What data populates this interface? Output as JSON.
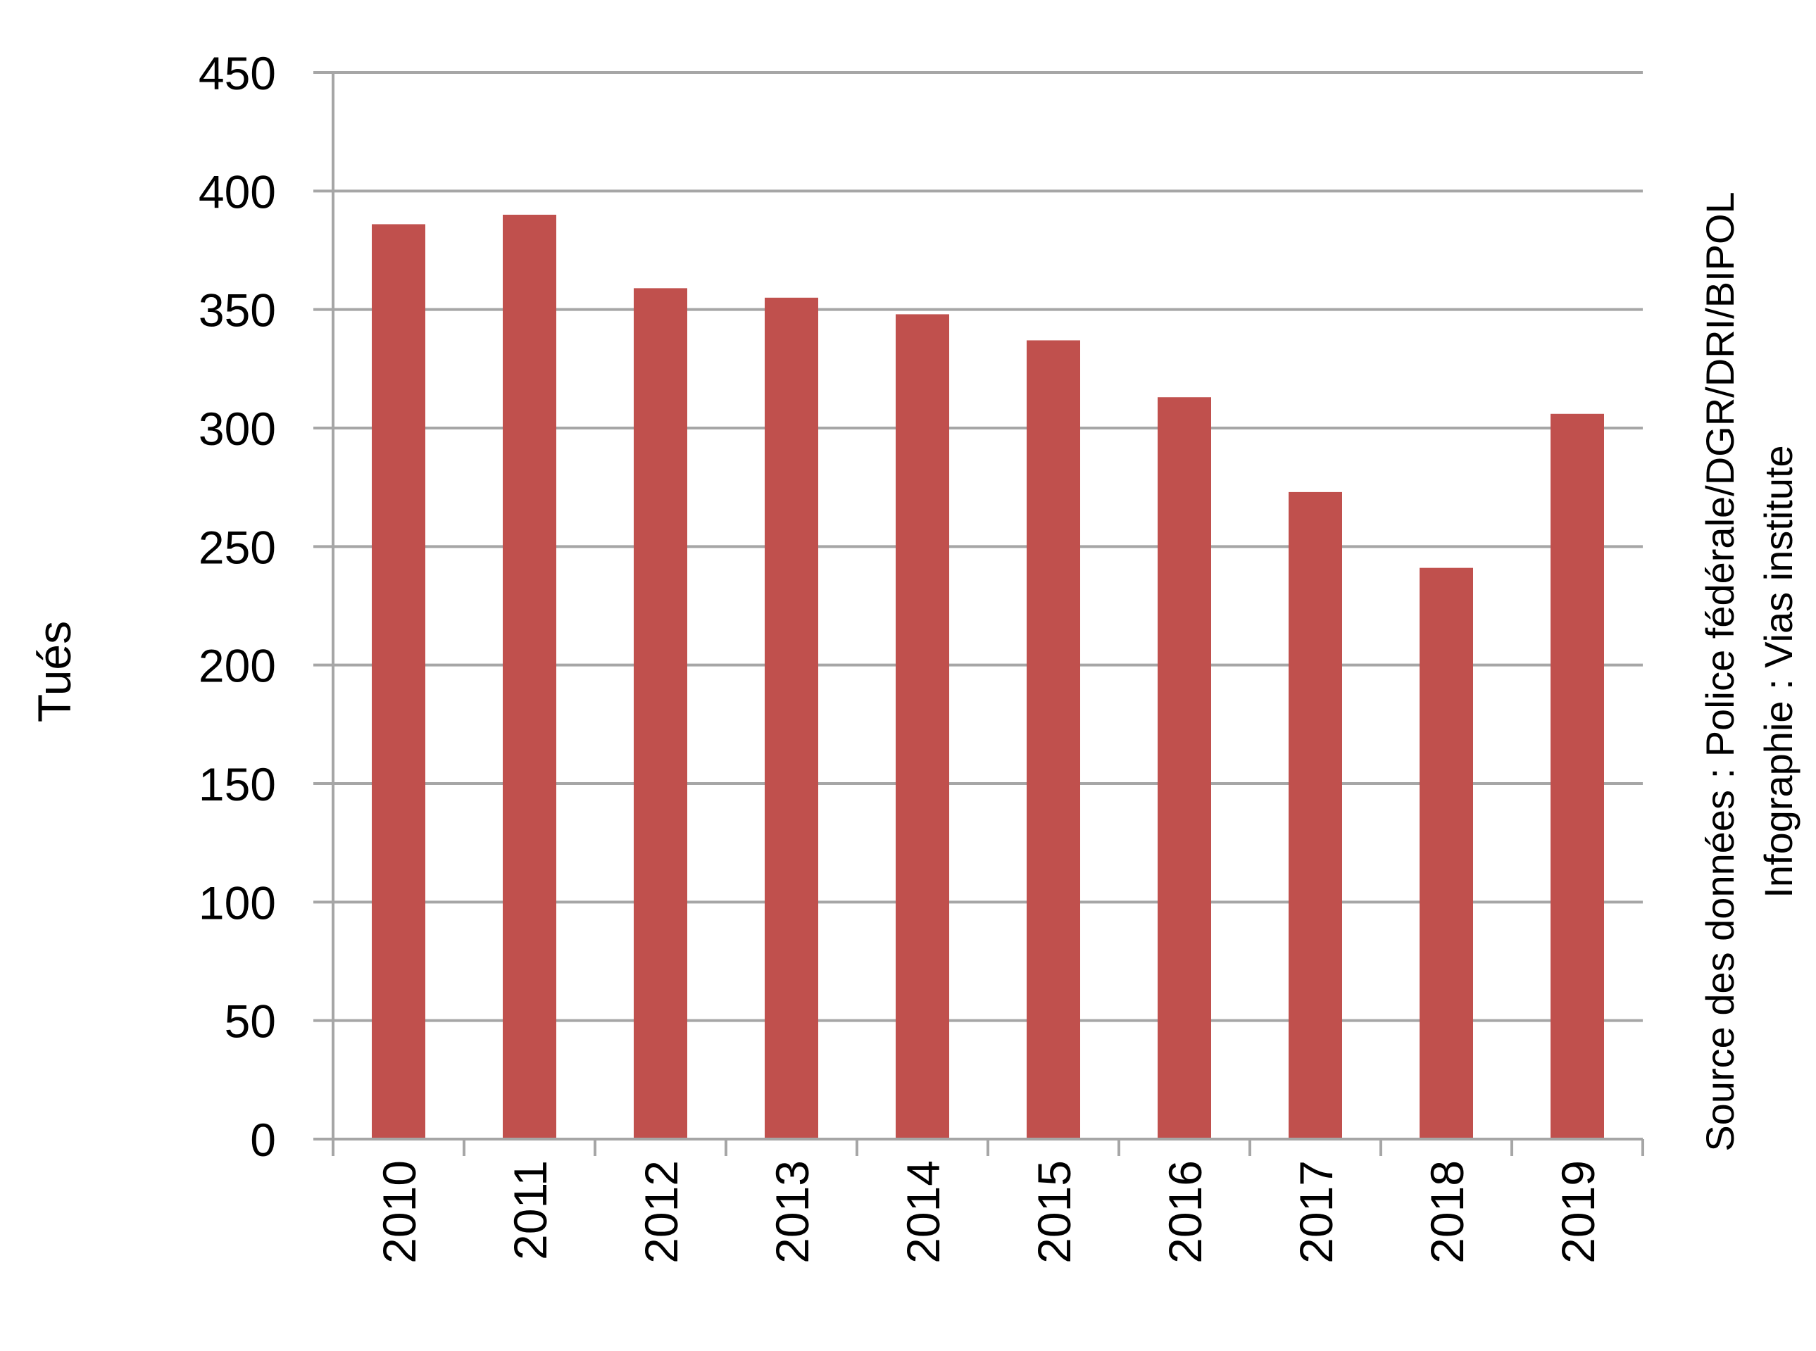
{
  "chart_data": {
    "type": "bar",
    "title": "",
    "xlabel": "",
    "ylabel": "Tués",
    "categories": [
      "2010",
      "2011",
      "2012",
      "2013",
      "2014",
      "2015",
      "2016",
      "2017",
      "2018",
      "2019"
    ],
    "values": [
      386,
      390,
      359,
      355,
      348,
      337,
      313,
      273,
      241,
      306
    ],
    "ylim": [
      0,
      450
    ],
    "yticks": [
      "0",
      "50",
      "100",
      "150",
      "200",
      "250",
      "300",
      "350",
      "400",
      "450"
    ],
    "grid": true,
    "legend": "none",
    "bar_color": "#c0504d",
    "grid_color": "#a6a6a6",
    "source_lines": [
      "Source des données : Police fédérale/DGR/DRI/BIPOL",
      "Infographie : Vias institute"
    ]
  }
}
